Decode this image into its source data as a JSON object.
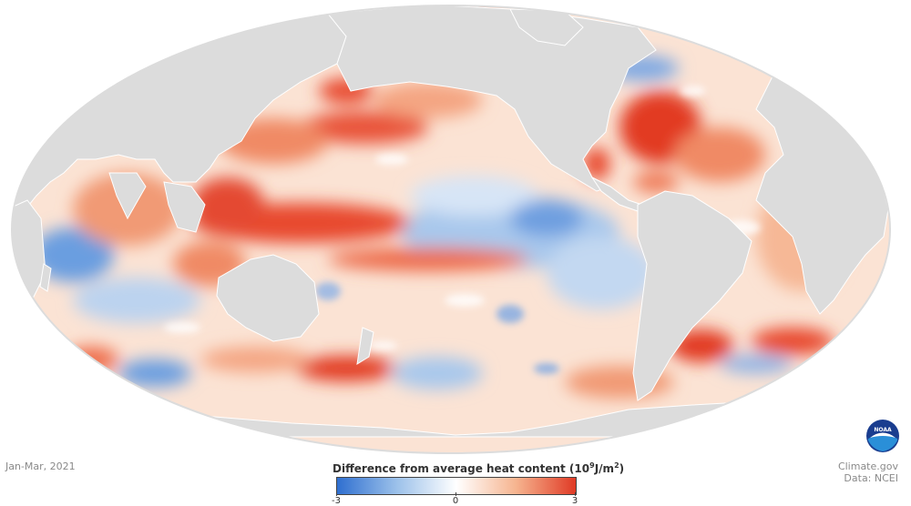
{
  "map": {
    "projection": "Mollweide",
    "variable": "ocean heat content anomaly",
    "center_longitude": "Pacific-centered",
    "colors": {
      "land": "#dcdcdc",
      "warm_strong": "#e8492f",
      "warm_light": "#f8c9ae",
      "neutral": "#ffffff",
      "cool_light": "#b8d3ee",
      "cool_strong": "#3d7fd6"
    }
  },
  "date_label": "Jan-Mar, 2021",
  "legend": {
    "title_main": "Difference from average heat content (10",
    "title_sup1": "9",
    "title_mid": "J/m",
    "title_sup2": "2",
    "title_end": ")",
    "min_label": "-3",
    "mid_label": "0",
    "max_label": "3",
    "gradient": [
      "#2f6fd0",
      "#9cc1ea",
      "#ffffff",
      "#f6b48f",
      "#e03a25"
    ]
  },
  "credit": {
    "line1": "Climate.gov",
    "line2": "Data: NCEI"
  },
  "logo": {
    "text": "NOAA",
    "colors": [
      "#1a3d8f",
      "#2a8fd8",
      "#ffffff"
    ]
  }
}
